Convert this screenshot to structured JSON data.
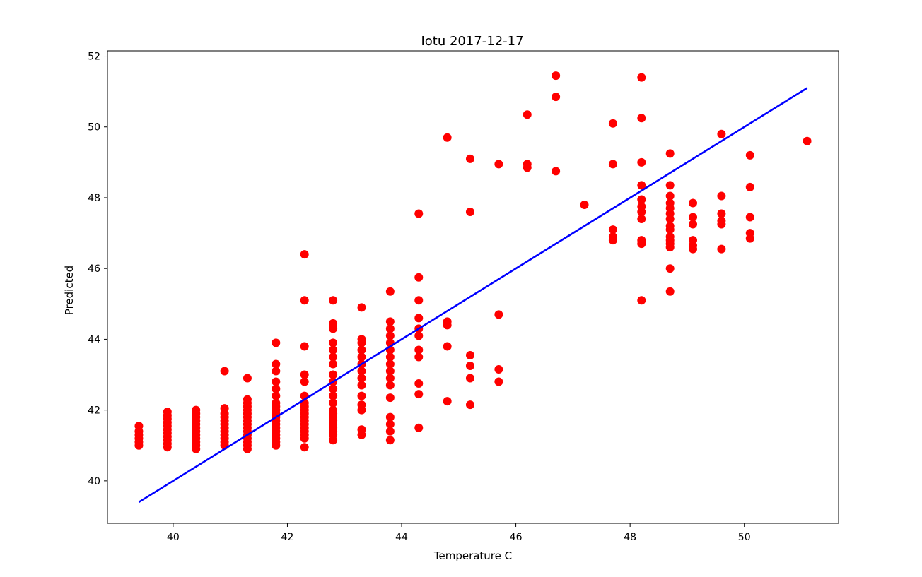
{
  "chart_data": {
    "type": "scatter",
    "title": "Iotu 2017-12-17",
    "xlabel": "Temperature C",
    "ylabel": "Predicted",
    "xlim": [
      38.85,
      51.65
    ],
    "ylim": [
      38.8,
      52.15
    ],
    "xticks": [
      40,
      42,
      44,
      46,
      48,
      50
    ],
    "yticks": [
      40,
      42,
      44,
      46,
      48,
      50,
      52
    ],
    "grid": false,
    "colors": {
      "points": "#ff0000",
      "fit_line": "#0000ff",
      "axes": "#000000"
    },
    "fit_line": {
      "x": [
        39.4,
        51.1
      ],
      "y": [
        39.4,
        51.1
      ]
    },
    "series": [
      {
        "x": 39.4,
        "y": [
          41.0,
          41.1,
          41.2,
          41.3,
          41.4,
          41.55
        ]
      },
      {
        "x": 39.9,
        "y": [
          40.95,
          41.05,
          41.15,
          41.25,
          41.35,
          41.45,
          41.55,
          41.65,
          41.75,
          41.85,
          41.95
        ]
      },
      {
        "x": 40.4,
        "y": [
          40.9,
          41.0,
          41.1,
          41.2,
          41.3,
          41.4,
          41.5,
          41.6,
          41.7,
          41.8,
          41.9,
          42.0
        ]
      },
      {
        "x": 40.9,
        "y": [
          41.0,
          41.1,
          41.2,
          41.3,
          41.4,
          41.5,
          41.6,
          41.7,
          41.8,
          41.9,
          42.05,
          43.1
        ]
      },
      {
        "x": 41.3,
        "y": [
          40.9,
          41.0,
          41.1,
          41.2,
          41.3,
          41.4,
          41.5,
          41.6,
          41.7,
          41.8,
          41.9,
          42.0,
          42.1,
          42.2,
          42.3,
          42.9
        ]
      },
      {
        "x": 41.8,
        "y": [
          41.0,
          41.1,
          41.2,
          41.3,
          41.4,
          41.5,
          41.6,
          41.7,
          41.8,
          41.9,
          42.0,
          42.1,
          42.2,
          42.4,
          42.6,
          42.8,
          43.1,
          43.3,
          43.9
        ]
      },
      {
        "x": 42.3,
        "y": [
          40.95,
          41.2,
          41.3,
          41.4,
          41.5,
          41.6,
          41.7,
          41.8,
          41.9,
          42.0,
          42.1,
          42.2,
          42.4,
          42.8,
          43.0,
          43.8,
          45.1,
          46.4
        ]
      },
      {
        "x": 42.8,
        "y": [
          41.15,
          41.3,
          41.4,
          41.5,
          41.6,
          41.7,
          41.8,
          41.9,
          42.0,
          42.2,
          42.4,
          42.6,
          42.8,
          43.0,
          43.3,
          43.5,
          43.7,
          43.9,
          44.3,
          44.45,
          45.1
        ]
      },
      {
        "x": 43.3,
        "y": [
          41.3,
          41.45,
          42.0,
          42.15,
          42.4,
          42.7,
          42.9,
          43.1,
          43.3,
          43.5,
          43.7,
          43.9,
          44.0,
          44.9
        ]
      },
      {
        "x": 43.8,
        "y": [
          41.15,
          41.4,
          41.6,
          41.8,
          42.35,
          42.7,
          42.9,
          43.1,
          43.3,
          43.5,
          43.7,
          43.9,
          44.1,
          44.3,
          44.5,
          45.35
        ]
      },
      {
        "x": 44.3,
        "y": [
          41.5,
          42.45,
          42.75,
          43.5,
          43.7,
          44.1,
          44.3,
          44.6,
          45.1,
          45.75,
          47.55
        ]
      },
      {
        "x": 44.8,
        "y": [
          42.25,
          43.8,
          44.4,
          44.5,
          49.7
        ]
      },
      {
        "x": 45.2,
        "y": [
          42.15,
          42.9,
          43.25,
          43.55,
          47.6,
          49.1
        ]
      },
      {
        "x": 45.7,
        "y": [
          42.8,
          43.15,
          44.7,
          48.95
        ]
      },
      {
        "x": 46.2,
        "y": [
          48.85,
          48.95,
          50.35
        ]
      },
      {
        "x": 46.7,
        "y": [
          48.75,
          50.85,
          51.45
        ]
      },
      {
        "x": 47.2,
        "y": [
          47.8
        ]
      },
      {
        "x": 47.7,
        "y": [
          46.8,
          46.9,
          47.1,
          48.95,
          50.1
        ]
      },
      {
        "x": 48.2,
        "y": [
          45.1,
          46.7,
          46.8,
          47.4,
          47.6,
          47.75,
          47.95,
          48.35,
          49.0,
          50.25,
          51.4
        ]
      },
      {
        "x": 48.7,
        "y": [
          45.35,
          46.0,
          46.6,
          46.7,
          46.8,
          46.9,
          47.1,
          47.2,
          47.4,
          47.55,
          47.7,
          47.85,
          48.05,
          48.35,
          49.25
        ]
      },
      {
        "x": 49.1,
        "y": [
          46.55,
          46.65,
          46.8,
          47.25,
          47.45,
          47.85
        ]
      },
      {
        "x": 49.6,
        "y": [
          46.55,
          47.25,
          47.35,
          47.55,
          48.05,
          49.8
        ]
      },
      {
        "x": 50.1,
        "y": [
          46.85,
          47.0,
          47.45,
          48.3,
          49.2
        ]
      },
      {
        "x": 51.1,
        "y": [
          49.6
        ]
      }
    ]
  }
}
